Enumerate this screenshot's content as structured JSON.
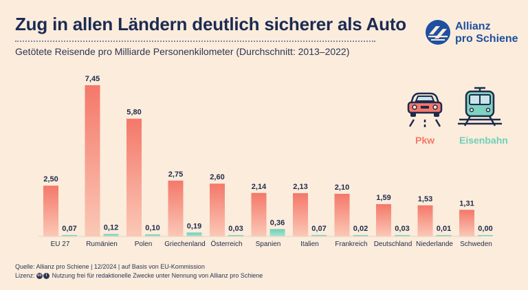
{
  "header": {
    "title": "Zug in allen Ländern deutlich sicherer als Auto",
    "subtitle": "Getötete Reisende pro Milliarde Personenkilometer (Durchschnitt: 2013–2022)"
  },
  "brand": {
    "line1": "Allianz",
    "line2": "pro Schiene",
    "color": "#1f4fa0"
  },
  "legend": {
    "car_label": "Pkw",
    "train_label": "Eisenbahn",
    "car_icon": "car-icon",
    "train_icon": "train-icon"
  },
  "colors": {
    "car": "#f4786a",
    "car_light": "#fbc2b2",
    "train": "#7dd3c0",
    "text": "#1e2a4a"
  },
  "footer": {
    "source": "Quelle: Allianz pro Schiene | 12/2024 | auf Basis von EU-Kommission",
    "license_label": "Lizenz:",
    "license_text": "Nutzung frei für redaktionelle Zwecke unter Nennung von Allianz pro Schiene",
    "cc_symbol": "cc",
    "by_symbol": "i"
  },
  "chart_data": {
    "type": "bar",
    "title": "Zug in allen Ländern deutlich sicherer als Auto",
    "ylabel": "Getötete Reisende pro Milliarde Personenkilometer",
    "ylim": [
      0,
      7.45
    ],
    "categories": [
      "EU 27",
      "Rumänien",
      "Polen",
      "Griechenland",
      "Österreich",
      "Spanien",
      "Italien",
      "Frankreich",
      "Deutschland",
      "Niederlande",
      "Schweden"
    ],
    "series": [
      {
        "name": "Pkw",
        "values": [
          2.5,
          7.45,
          5.8,
          2.75,
          2.6,
          2.14,
          2.13,
          2.1,
          1.59,
          1.53,
          1.31
        ],
        "labels": [
          "2,50",
          "7,45",
          "5,80",
          "2,75",
          "2,60",
          "2,14",
          "2,13",
          "2,10",
          "1,59",
          "1,53",
          "1,31"
        ]
      },
      {
        "name": "Eisenbahn",
        "values": [
          0.07,
          0.12,
          0.1,
          0.19,
          0.03,
          0.36,
          0.07,
          0.02,
          0.03,
          0.01,
          0.0
        ],
        "labels": [
          "0,07",
          "0,12",
          "0,10",
          "0,19",
          "0,03",
          "0,36",
          "0,07",
          "0,02",
          "0,03",
          "0,01",
          "0,00"
        ]
      }
    ]
  }
}
